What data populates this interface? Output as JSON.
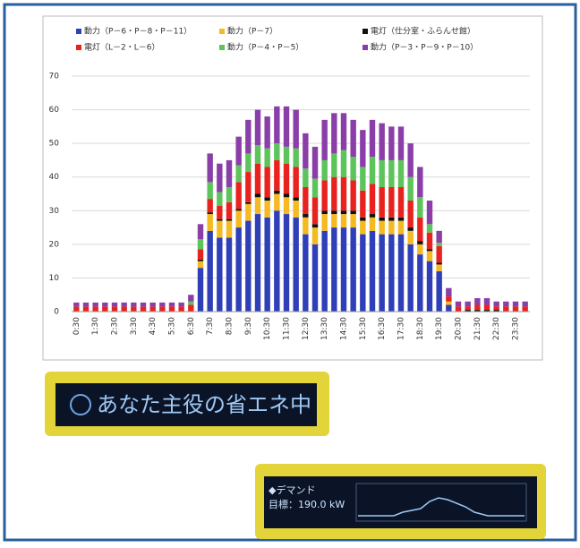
{
  "chart_data": {
    "type": "stacked-bar",
    "categories": [
      "0:30",
      null,
      "1:30",
      null,
      "2:30",
      null,
      "3:30",
      null,
      "4:30",
      null,
      "5:30",
      null,
      "6:30",
      null,
      "7:30",
      null,
      "8:30",
      null,
      "9:30",
      null,
      "10:30",
      null,
      "11:30",
      null,
      "12:30",
      null,
      "13:30",
      null,
      "14:30",
      null,
      "15:30",
      null,
      "16:30",
      null,
      "17:30",
      null,
      "18:30",
      null,
      "19:30",
      null,
      "20:30",
      null,
      "21:30",
      null,
      "22:30",
      null,
      "23:30",
      null
    ],
    "series": [
      {
        "name": "動力（P－6・P－8・P－11）",
        "color": "#2f3fb8",
        "values": [
          0,
          0,
          0,
          0,
          0,
          0,
          0,
          0,
          0,
          0,
          0,
          0,
          0,
          13,
          24,
          22,
          22,
          25,
          27,
          29,
          28,
          30,
          29,
          28,
          23,
          20,
          24,
          25,
          25,
          25,
          23,
          24,
          23,
          23,
          23,
          20,
          17,
          15,
          12,
          2,
          0,
          0,
          0,
          0,
          0,
          0,
          0,
          0
        ]
      },
      {
        "name": "動力（P－7）",
        "color": "#f5b921",
        "values": [
          0,
          0,
          0,
          0,
          0,
          0,
          0,
          0,
          0,
          0,
          0,
          0,
          0,
          2,
          5,
          5,
          5,
          5,
          5,
          5,
          5,
          5,
          5,
          5,
          5,
          5,
          5,
          4,
          4,
          4,
          4,
          4,
          4,
          4,
          4,
          4,
          3,
          3,
          2,
          1,
          0,
          0,
          0,
          0,
          0,
          0,
          0,
          0
        ]
      },
      {
        "name": "電灯（仕分室・ふらんせ館）",
        "color": "#111111",
        "values": [
          0,
          0,
          0,
          0,
          0,
          0,
          0,
          0,
          0,
          0,
          0,
          0,
          0,
          0.5,
          0.5,
          0.5,
          0.5,
          0.5,
          0.5,
          1,
          1,
          1,
          1,
          1,
          1,
          1,
          1,
          1,
          1,
          1,
          1,
          1,
          1,
          1,
          1,
          1,
          1,
          0.5,
          0.5,
          0,
          0,
          0.5,
          0.5,
          0.5,
          0.5,
          0,
          0,
          0
        ]
      },
      {
        "name": "電灯（L－2・L－6）",
        "color": "#e8231f",
        "values": [
          1.5,
          1.5,
          1.5,
          1.5,
          1.5,
          1.5,
          1.5,
          1.5,
          1.5,
          1.5,
          1.5,
          1.5,
          2,
          3,
          4,
          4,
          5,
          8,
          9,
          9,
          9,
          9,
          9,
          9,
          8,
          8,
          9,
          10,
          10,
          9,
          8,
          9,
          9,
          9,
          9,
          8,
          7,
          5,
          5,
          1.5,
          1.5,
          1,
          1.5,
          1.5,
          1,
          1.5,
          1.5,
          1.5
        ]
      },
      {
        "name": "動力（P－4・P－5）",
        "color": "#5cc45a",
        "values": [
          0,
          0,
          0,
          0,
          0,
          0,
          0,
          0,
          0,
          0,
          0,
          0,
          1,
          3,
          5,
          4,
          4.5,
          5,
          5.5,
          5.5,
          5.5,
          5,
          5,
          5.5,
          5.5,
          5.5,
          6,
          7,
          8,
          7,
          7,
          8,
          8,
          8,
          8,
          7,
          6,
          2.5,
          1,
          0,
          0,
          0,
          0,
          0,
          0,
          0,
          0,
          0
        ]
      },
      {
        "name": "動力（P－3・P－9・P－10）",
        "color": "#8a3fa8",
        "values": [
          1.2,
          1.2,
          1.2,
          1.2,
          1.2,
          1.2,
          1.2,
          1.2,
          1.2,
          1.2,
          1.2,
          1.2,
          2,
          4.5,
          8.5,
          8.5,
          8,
          8.5,
          10,
          10.5,
          9.5,
          11,
          12,
          11.5,
          10.5,
          9.5,
          12,
          12,
          11,
          11,
          11,
          11,
          11,
          10,
          10,
          10,
          9,
          7,
          3.5,
          2.5,
          1.5,
          1.5,
          2,
          2,
          1.5,
          1.5,
          1.5,
          1.5
        ]
      }
    ],
    "ylim": [
      0,
      70
    ],
    "yticks": [
      0,
      10,
      20,
      30,
      40,
      50,
      60,
      70
    ],
    "grid": true,
    "legend": "top"
  },
  "displays": [
    {
      "text": "あなた主役の省エネ中"
    },
    {
      "lines": [
        "◆デマンド",
        "目標：190.0 kW"
      ]
    }
  ]
}
